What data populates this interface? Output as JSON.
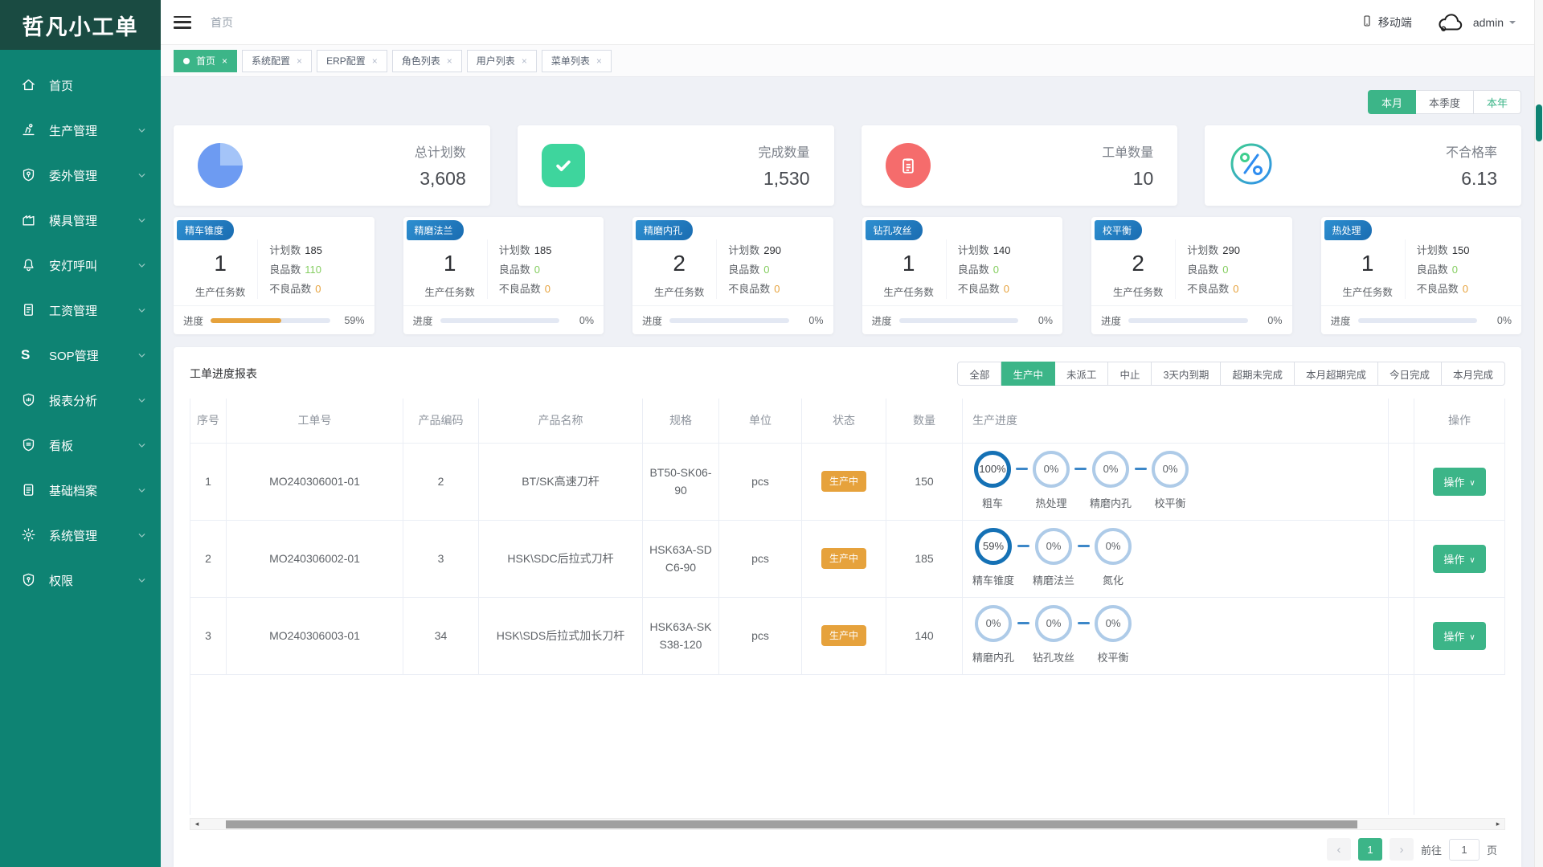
{
  "app": {
    "title": "哲凡小工单"
  },
  "topbar": {
    "breadcrumb": "首页",
    "mobile_label": "移动端",
    "username": "admin"
  },
  "tabs": [
    {
      "id": "home",
      "label": "首页",
      "active": true
    },
    {
      "id": "system-config",
      "label": "系统配置",
      "active": false
    },
    {
      "id": "erp-config",
      "label": "ERP配置",
      "active": false
    },
    {
      "id": "role-list",
      "label": "角色列表",
      "active": false
    },
    {
      "id": "user-list",
      "label": "用户列表",
      "active": false
    },
    {
      "id": "menu-list",
      "label": "菜单列表",
      "active": false
    }
  ],
  "sidebar": {
    "items": [
      {
        "id": "home",
        "icon": "home-icon",
        "label": "首页",
        "expandable": false
      },
      {
        "id": "production",
        "icon": "machine-icon",
        "label": "生产管理",
        "expandable": true
      },
      {
        "id": "outsourcing",
        "icon": "shield-pin-icon",
        "label": "委外管理",
        "expandable": true
      },
      {
        "id": "mold",
        "icon": "factory-icon",
        "label": "模具管理",
        "expandable": true
      },
      {
        "id": "andon",
        "icon": "bell-icon",
        "label": "安灯呼叫",
        "expandable": true
      },
      {
        "id": "salary",
        "icon": "salary-doc-icon",
        "label": "工资管理",
        "expandable": true
      },
      {
        "id": "sop",
        "icon": "sop-icon",
        "label": "SOP管理",
        "expandable": true
      },
      {
        "id": "report-analysis",
        "icon": "report-shield-icon",
        "label": "报表分析",
        "expandable": true
      },
      {
        "id": "board",
        "icon": "board-shield-icon",
        "label": "看板",
        "expandable": true
      },
      {
        "id": "archives",
        "icon": "archive-doc-icon",
        "label": "基础档案",
        "expandable": true
      },
      {
        "id": "system",
        "icon": "gear-icon",
        "label": "系统管理",
        "expandable": true
      },
      {
        "id": "permission",
        "icon": "permission-shield-icon",
        "label": "权限",
        "expandable": true
      }
    ]
  },
  "period_toggle": [
    {
      "id": "month",
      "label": "本月",
      "state": "active"
    },
    {
      "id": "quarter",
      "label": "本季度",
      "state": "normal"
    },
    {
      "id": "year",
      "label": "本年",
      "state": "green-text"
    }
  ],
  "stat_cards": [
    {
      "id": "total-plan",
      "icon": "pie-chart-icon",
      "label": "总计划数",
      "value": "3,608"
    },
    {
      "id": "completed",
      "icon": "check-icon",
      "label": "完成数量",
      "value": "1,530"
    },
    {
      "id": "work-orders",
      "icon": "clipboard-icon",
      "label": "工单数量",
      "value": "10"
    },
    {
      "id": "defect-rate",
      "icon": "percent-icon",
      "label": "不合格率",
      "value": "6.13"
    }
  ],
  "process_labels": {
    "tasks": "生产任务数",
    "plan": "计划数",
    "good": "良品数",
    "defect": "不良品数",
    "progress": "进度"
  },
  "process_cards": [
    {
      "name": "精车锥度",
      "task_count": "1",
      "plan": "185",
      "good": "110",
      "defect": "0",
      "progress_pct": 59,
      "progress_text": "59%"
    },
    {
      "name": "精磨法兰",
      "task_count": "1",
      "plan": "185",
      "good": "0",
      "defect": "0",
      "progress_pct": 0,
      "progress_text": "0%"
    },
    {
      "name": "精磨内孔",
      "task_count": "2",
      "plan": "290",
      "good": "0",
      "defect": "0",
      "progress_pct": 0,
      "progress_text": "0%"
    },
    {
      "name": "钻孔攻丝",
      "task_count": "1",
      "plan": "140",
      "good": "0",
      "defect": "0",
      "progress_pct": 0,
      "progress_text": "0%"
    },
    {
      "name": "校平衡",
      "task_count": "2",
      "plan": "290",
      "good": "0",
      "defect": "0",
      "progress_pct": 0,
      "progress_text": "0%"
    },
    {
      "name": "热处理",
      "task_count": "1",
      "plan": "150",
      "good": "0",
      "defect": "0",
      "progress_pct": 0,
      "progress_text": "0%"
    }
  ],
  "report": {
    "title": "工单进度报表",
    "filters": [
      "全部",
      "生产中",
      "未派工",
      "中止",
      "3天内到期",
      "超期未完成",
      "本月超期完成",
      "今日完成",
      "本月完成"
    ],
    "active_filter": 1,
    "columns": [
      "序号",
      "工单号",
      "产品编码",
      "产品名称",
      "规格",
      "单位",
      "状态",
      "数量",
      "生产进度",
      "",
      "操作"
    ],
    "rows": [
      {
        "seq": "1",
        "order_no": "MO240306001-01",
        "product_code": "2",
        "product_name": "BT/SK高速刀杆",
        "spec": "BT50-SK06-90",
        "unit": "pcs",
        "status": "生产中",
        "qty": "150",
        "action": "操作",
        "steps": [
          {
            "pct": "100%",
            "label": "粗车",
            "done": true
          },
          {
            "pct": "0%",
            "label": "热处理",
            "done": false
          },
          {
            "pct": "0%",
            "label": "精磨内孔",
            "done": false
          },
          {
            "pct": "0%",
            "label": "校平衡",
            "done": false
          }
        ]
      },
      {
        "seq": "2",
        "order_no": "MO240306002-01",
        "product_code": "3",
        "product_name": "HSK\\SDC后拉式刀杆",
        "spec": "HSK63A-SDC6-90",
        "unit": "pcs",
        "status": "生产中",
        "qty": "185",
        "action": "操作",
        "steps": [
          {
            "pct": "59%",
            "label": "精车锥度",
            "done": true
          },
          {
            "pct": "0%",
            "label": "精磨法兰",
            "done": false
          },
          {
            "pct": "0%",
            "label": "氮化",
            "done": false
          }
        ]
      },
      {
        "seq": "3",
        "order_no": "MO240306003-01",
        "product_code": "34",
        "product_name": "HSK\\SDS后拉式加长刀杆",
        "spec": "HSK63A-SKS38-120",
        "unit": "pcs",
        "status": "生产中",
        "qty": "140",
        "action": "操作",
        "steps": [
          {
            "pct": "0%",
            "label": "精磨内孔",
            "done": false
          },
          {
            "pct": "0%",
            "label": "钻孔攻丝",
            "done": false
          },
          {
            "pct": "0%",
            "label": "校平衡",
            "done": false
          }
        ]
      }
    ]
  },
  "pagination": {
    "current": "1",
    "goto_label": "前往",
    "goto_value": "1",
    "page_unit": "页"
  },
  "colors": {
    "sidebar": "#0e8373",
    "sidebar_logo": "#1a4b42",
    "accent_green": "#3cb588",
    "warning_orange": "#e6a23c",
    "badge_blue": "#1f78bd",
    "circle_active": "#1571b5",
    "circle_idle": "#aecbe8",
    "good_green": "#85ce61",
    "danger_red": "#f56c6c"
  }
}
